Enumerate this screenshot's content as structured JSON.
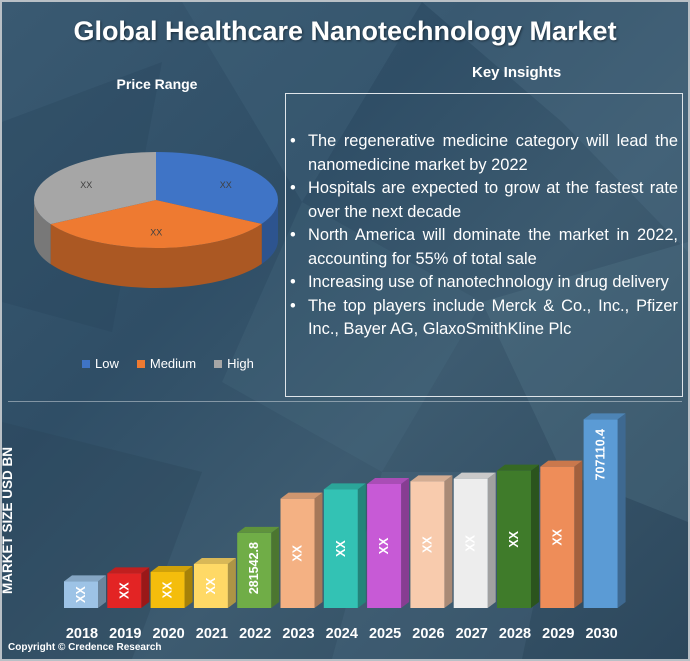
{
  "title": "Global Healthcare Nanotechnology Market",
  "copyright": "Copyright © Credence Research",
  "insights": {
    "title": "Key Insights",
    "items": [
      "The regenerative medicine category will lead the nanomedicine market by 2022",
      "Hospitals are expected to grow at the fastest rate over the next decade",
      "North America will dominate the market in 2022, accounting for 55% of total sale",
      "Increasing use of nanotechnology in drug delivery",
      "The top players include Merck & Co., Inc., Pfizer Inc., Bayer AG, GlaxoSmithKline Plc"
    ]
  },
  "chart_data": [
    {
      "type": "pie",
      "title": "Price Range",
      "categories": [
        "Low",
        "Medium",
        "High"
      ],
      "values": [
        33.3,
        33.3,
        33.4
      ],
      "labels": [
        "XX",
        "XX",
        "XX"
      ],
      "colors": [
        "#3f74c6",
        "#ee7a31",
        "#a6a6a6"
      ],
      "legend_position": "bottom",
      "three_d": true
    },
    {
      "type": "bar",
      "ylabel": "MARKET SIZE USD BN",
      "categories": [
        "2018",
        "2019",
        "2020",
        "2021",
        "2022",
        "2023",
        "2024",
        "2025",
        "2026",
        "2027",
        "2028",
        "2029",
        "2030"
      ],
      "values": [
        100000,
        130000,
        135000,
        165000,
        281542.8,
        410000,
        445000,
        465000,
        475000,
        485000,
        515000,
        530000,
        707110.4
      ],
      "data_labels": [
        "XX",
        "XX",
        "XX",
        "XX",
        "281542.8",
        "XX",
        "XX",
        "XX",
        "XX",
        "XX",
        "XX",
        "XX",
        "707110.4"
      ],
      "colors": [
        "#9dc3e6",
        "#e32424",
        "#f4bd0c",
        "#ffd966",
        "#70ad47",
        "#f4b183",
        "#33c2b4",
        "#c75ad6",
        "#f8cbad",
        "#ededed",
        "#3f7b2a",
        "#ee8d59",
        "#5b9bd5"
      ],
      "ylim": [
        0,
        750000
      ],
      "three_d": true,
      "grid": false
    }
  ]
}
